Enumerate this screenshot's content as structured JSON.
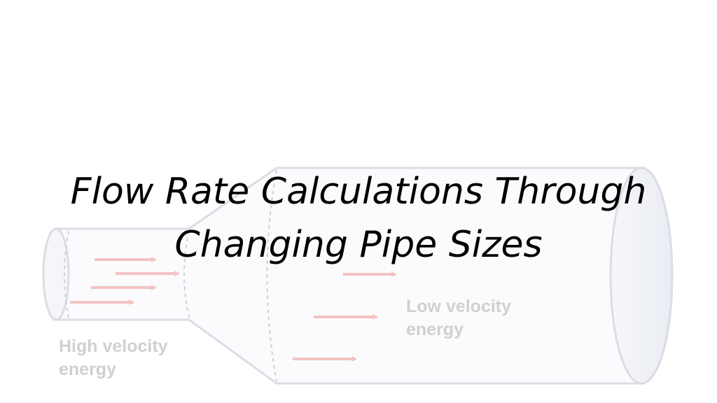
{
  "slide": {
    "title_line_1": "Flow Rate Calculations Through",
    "title_line_2": "Changing Pipe Sizes"
  },
  "diagram": {
    "high_velocity_label_line_1": "High velocity",
    "high_velocity_label_line_2": "energy",
    "low_velocity_label_line_1": "Low velocity",
    "low_velocity_label_line_2": "energy",
    "colors": {
      "pipe_outline": "#dcdce4",
      "pipe_fill": "#fbfbfd",
      "pipe_end_shade": "#eef0f5",
      "arrow": "#f3c3c3",
      "label": "#d0d0d0",
      "dashed_seam": "#cfcfd6"
    }
  }
}
